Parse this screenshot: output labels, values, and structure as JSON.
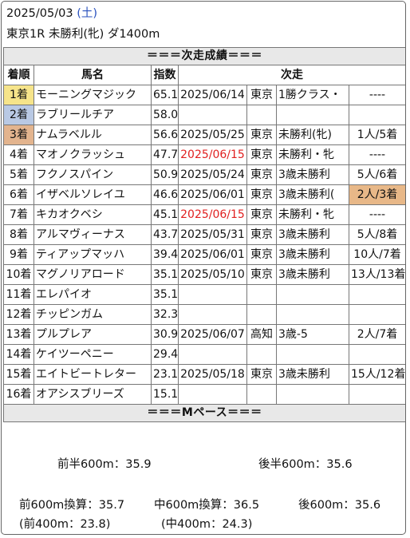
{
  "header": {
    "date": "2025/05/03",
    "weekday_open": "(",
    "weekday": "土",
    "weekday_close": ")",
    "race": "東京1R 未勝利(牝) ダ1400m"
  },
  "section_next": "＝＝＝次走成績＝＝＝",
  "columns": [
    "着順",
    "馬名",
    "指数",
    "次走"
  ],
  "rows": [
    {
      "rank": "1着",
      "name": "モーニングマジック",
      "index": "65.1",
      "date": "2025/06/14",
      "venue": "東京",
      "race": "1勝クラス・",
      "result": "----"
    },
    {
      "rank": "2着",
      "name": "ラブリールチア",
      "index": "58.0",
      "date": "",
      "venue": "",
      "race": "",
      "result": ""
    },
    {
      "rank": "3着",
      "name": "ナムラベルル",
      "index": "56.6",
      "date": "2025/05/25",
      "venue": "東京",
      "race": "未勝利(牝)",
      "result": "1人/5着"
    },
    {
      "rank": "4着",
      "name": "マオノクラッシュ",
      "index": "47.7",
      "date": "2025/06/15",
      "venue": "東京",
      "race": "未勝利・牝",
      "result": "----"
    },
    {
      "rank": "5着",
      "name": "フクノスパイン",
      "index": "50.9",
      "date": "2025/05/24",
      "venue": "東京",
      "race": "3歳未勝利",
      "result": "5人/6着"
    },
    {
      "rank": "6着",
      "name": "イザベルソレイユ",
      "index": "46.6",
      "date": "2025/06/01",
      "venue": "東京",
      "race": "3歳未勝利(",
      "result": "2人/3着"
    },
    {
      "rank": "7着",
      "name": "キカオクベシ",
      "index": "45.1",
      "date": "2025/06/15",
      "venue": "東京",
      "race": "未勝利・牝",
      "result": "----"
    },
    {
      "rank": "8着",
      "name": "アルマヴィーナス",
      "index": "43.7",
      "date": "2025/05/31",
      "venue": "東京",
      "race": "3歳未勝利",
      "result": "5人/8着"
    },
    {
      "rank": "9着",
      "name": "ティアップマッハ",
      "index": "39.4",
      "date": "2025/06/01",
      "venue": "東京",
      "race": "3歳未勝利",
      "result": "10人/7着"
    },
    {
      "rank": "10着",
      "name": "マグノリアロード",
      "index": "35.1",
      "date": "2025/05/10",
      "venue": "東京",
      "race": "3歳未勝利",
      "result": "13人/13着"
    },
    {
      "rank": "11着",
      "name": "エレパイオ",
      "index": "35.1",
      "date": "",
      "venue": "",
      "race": "",
      "result": ""
    },
    {
      "rank": "12着",
      "name": "チッピンガム",
      "index": "32.3",
      "date": "",
      "venue": "",
      "race": "",
      "result": ""
    },
    {
      "rank": "13着",
      "name": "プルプレア",
      "index": "30.9",
      "date": "2025/06/07",
      "venue": "高知",
      "race": "3歳-5",
      "result": "2人/7着"
    },
    {
      "rank": "14着",
      "name": "ケイツーペニー",
      "index": "29.4",
      "date": "",
      "venue": "",
      "race": "",
      "result": ""
    },
    {
      "rank": "15着",
      "name": "エイトビートレター",
      "index": "23.1",
      "date": "2025/05/18",
      "venue": "東京",
      "race": "3歳未勝利",
      "result": "15人/12着"
    },
    {
      "rank": "16着",
      "name": "オアシスブリーズ",
      "index": "15.1",
      "date": "",
      "venue": "",
      "race": "",
      "result": ""
    }
  ],
  "section_pace": "＝＝＝Mペース＝＝＝",
  "pace": {
    "first_half": "前半600m：35.9",
    "second_half": "後半600m：35.6",
    "front600": "前600m換算：35.7",
    "mid600": "中600m換算：36.5",
    "back600": "後600m：35.6",
    "front400": "(前400m：23.8)",
    "mid400": "(中400m：24.3)"
  }
}
